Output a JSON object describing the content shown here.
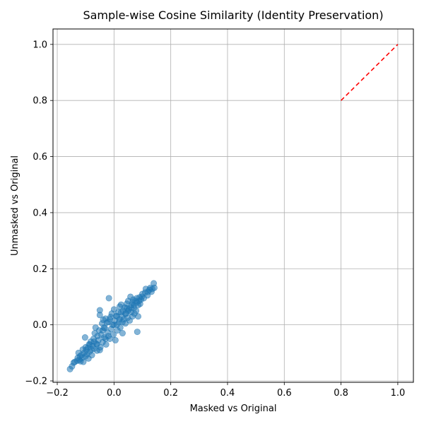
{
  "chart_data": {
    "type": "scatter",
    "title": "Sample-wise Cosine Similarity (Identity Preservation)",
    "xlabel": "Masked vs Original",
    "ylabel": "Unmasked vs Original",
    "xlim": [
      -0.215,
      1.055
    ],
    "ylim": [
      -0.205,
      1.055
    ],
    "x_ticks": [
      -0.2,
      0.0,
      0.2,
      0.4,
      0.6,
      0.8,
      1.0
    ],
    "y_ticks": [
      -0.2,
      0.0,
      0.2,
      0.4,
      0.6,
      0.8,
      1.0
    ],
    "x_tick_labels": [
      "−0.2",
      "0.0",
      "0.2",
      "0.4",
      "0.6",
      "0.8",
      "1.0"
    ],
    "y_tick_labels": [
      "−0.2",
      "0.0",
      "0.2",
      "0.4",
      "0.6",
      "0.8",
      "1.0"
    ],
    "grid": true,
    "series": [
      {
        "kind": "scatter",
        "color": "#1f77b4",
        "alpha": 0.55,
        "points": [
          [
            -0.155,
            -0.158
          ],
          [
            -0.148,
            -0.148
          ],
          [
            -0.142,
            -0.135
          ],
          [
            -0.138,
            -0.132
          ],
          [
            -0.13,
            -0.128
          ],
          [
            -0.128,
            -0.118
          ],
          [
            -0.125,
            -0.1
          ],
          [
            -0.122,
            -0.125
          ],
          [
            -0.12,
            -0.112
          ],
          [
            -0.118,
            -0.13
          ],
          [
            -0.115,
            -0.108
          ],
          [
            -0.112,
            -0.118
          ],
          [
            -0.11,
            -0.088
          ],
          [
            -0.108,
            -0.132
          ],
          [
            -0.105,
            -0.1
          ],
          [
            -0.102,
            -0.045
          ],
          [
            -0.1,
            -0.112
          ],
          [
            -0.098,
            -0.09
          ],
          [
            -0.095,
            -0.105
          ],
          [
            -0.092,
            -0.082
          ],
          [
            -0.09,
            -0.12
          ],
          [
            -0.088,
            -0.07
          ],
          [
            -0.085,
            -0.095
          ],
          [
            -0.082,
            -0.06
          ],
          [
            -0.08,
            -0.088
          ],
          [
            -0.078,
            -0.108
          ],
          [
            -0.075,
            -0.075
          ],
          [
            -0.072,
            -0.05
          ],
          [
            -0.07,
            -0.085
          ],
          [
            -0.068,
            -0.03
          ],
          [
            -0.065,
            -0.01
          ],
          [
            -0.062,
            -0.068
          ],
          [
            -0.06,
            -0.092
          ],
          [
            -0.058,
            -0.04
          ],
          [
            -0.055,
            -0.055
          ],
          [
            -0.052,
            -0.02
          ],
          [
            -0.05,
            0.052
          ],
          [
            -0.05,
            0.035
          ],
          [
            -0.048,
            -0.08
          ],
          [
            -0.045,
            -0.035
          ],
          [
            -0.042,
            0.005
          ],
          [
            -0.04,
            -0.062
          ],
          [
            -0.038,
            0.018
          ],
          [
            -0.035,
            -0.045
          ],
          [
            -0.032,
            -0.012
          ],
          [
            -0.03,
            0.022
          ],
          [
            -0.028,
            -0.07
          ],
          [
            -0.025,
            0.008
          ],
          [
            -0.022,
            -0.028
          ],
          [
            -0.02,
            0.01
          ],
          [
            -0.018,
            0.095
          ],
          [
            -0.015,
            -0.05
          ],
          [
            -0.012,
            0.028
          ],
          [
            -0.01,
            -0.015
          ],
          [
            -0.008,
            0.04
          ],
          [
            -0.005,
            0.0
          ],
          [
            -0.002,
            -0.035
          ],
          [
            0.0,
            0.055
          ],
          [
            0.002,
            0.015
          ],
          [
            0.005,
            -0.055
          ],
          [
            0.008,
            0.032
          ],
          [
            0.01,
            0.0
          ],
          [
            0.012,
            -0.02
          ],
          [
            0.015,
            0.045
          ],
          [
            0.018,
            0.01
          ],
          [
            0.02,
            0.065
          ],
          [
            0.022,
            -0.01
          ],
          [
            0.025,
            0.072
          ],
          [
            0.028,
            0.03
          ],
          [
            0.03,
            -0.03
          ],
          [
            0.032,
            0.05
          ],
          [
            0.035,
            0.02
          ],
          [
            0.038,
            0.062
          ],
          [
            0.04,
            0.005
          ],
          [
            0.042,
            0.04
          ],
          [
            0.045,
            0.075
          ],
          [
            0.048,
            0.025
          ],
          [
            0.05,
            0.085
          ],
          [
            0.052,
            0.055
          ],
          [
            0.055,
            0.015
          ],
          [
            0.058,
            0.1
          ],
          [
            0.06,
            0.045
          ],
          [
            0.062,
            0.07
          ],
          [
            0.065,
            0.03
          ],
          [
            0.068,
            0.09
          ],
          [
            0.07,
            0.06
          ],
          [
            0.072,
            0.04
          ],
          [
            0.075,
            0.085
          ],
          [
            0.078,
            0.05
          ],
          [
            0.08,
            0.095
          ],
          [
            0.082,
            -0.025
          ],
          [
            0.085,
            0.03
          ],
          [
            0.085,
            0.07
          ],
          [
            0.088,
            0.085
          ],
          [
            0.09,
            0.098
          ],
          [
            0.092,
            0.075
          ],
          [
            0.095,
            0.09
          ],
          [
            0.098,
            0.1
          ],
          [
            0.1,
            0.11
          ],
          [
            0.105,
            0.095
          ],
          [
            0.11,
            0.115
          ],
          [
            0.112,
            0.128
          ],
          [
            0.118,
            0.105
          ],
          [
            0.12,
            0.118
          ],
          [
            0.125,
            0.125
          ],
          [
            0.128,
            0.132
          ],
          [
            0.132,
            0.118
          ],
          [
            0.135,
            0.128
          ],
          [
            0.14,
            0.148
          ],
          [
            0.142,
            0.132
          ],
          [
            -0.06,
            -0.07
          ],
          [
            -0.04,
            -0.02
          ],
          [
            -0.02,
            -0.04
          ],
          [
            0.0,
            0.0
          ],
          [
            0.02,
            0.02
          ],
          [
            0.04,
            0.04
          ],
          [
            0.06,
            0.06
          ],
          [
            0.08,
            0.08
          ],
          [
            -0.07,
            -0.06
          ],
          [
            -0.03,
            -0.05
          ],
          [
            0.01,
            0.03
          ],
          [
            0.03,
            0.01
          ],
          [
            0.05,
            0.05
          ],
          [
            0.07,
            0.07
          ],
          [
            -0.05,
            -0.09
          ],
          [
            -0.1,
            -0.08
          ],
          [
            -0.085,
            -0.07
          ],
          [
            0.065,
            0.08
          ],
          [
            0.045,
            0.06
          ],
          [
            0.025,
            0.045
          ],
          [
            -0.015,
            0.02
          ],
          [
            -0.035,
            -0.01
          ]
        ]
      },
      {
        "kind": "line",
        "style": "dashed",
        "color": "#ff0000",
        "points": [
          [
            0.8,
            0.8
          ],
          [
            1.0,
            1.0
          ]
        ]
      }
    ]
  }
}
